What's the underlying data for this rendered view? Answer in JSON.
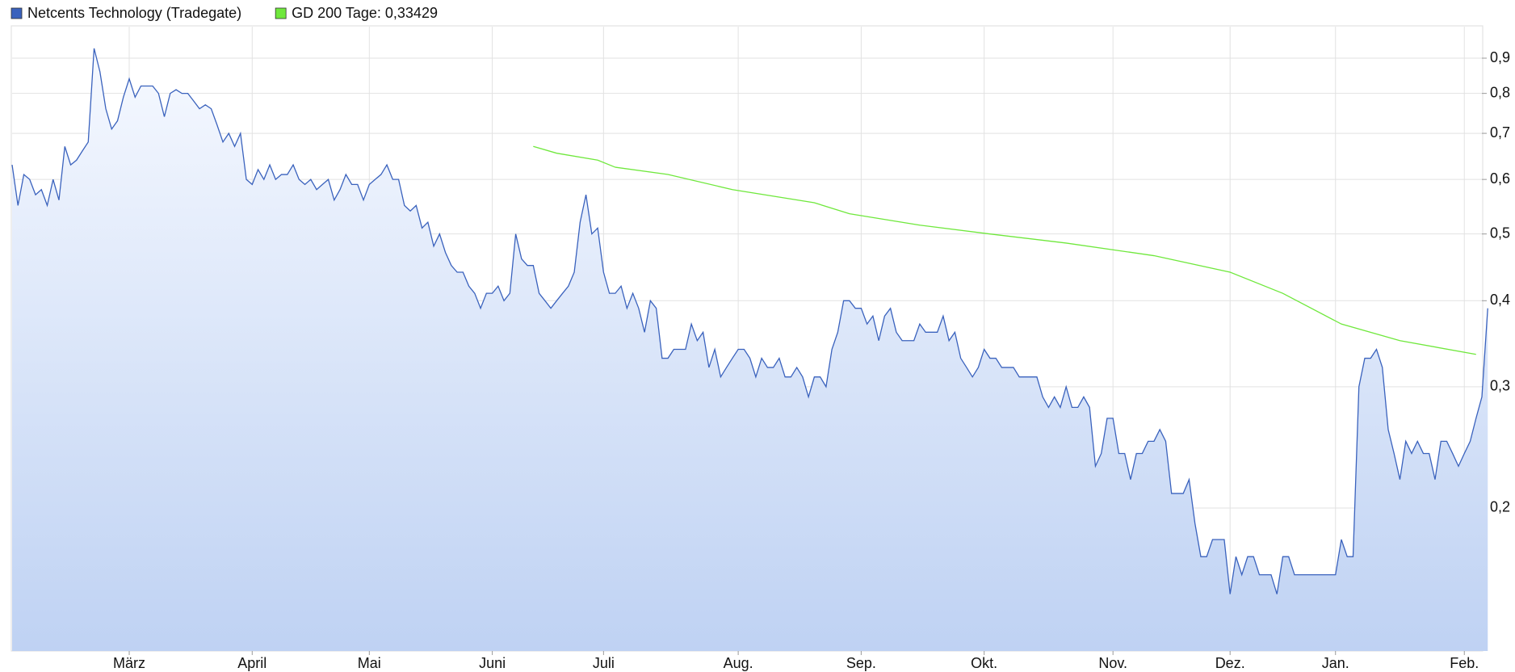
{
  "chart_data": {
    "type": "area",
    "yscale": "log",
    "grid": true,
    "xlim": [
      0,
      251
    ],
    "ylim": [
      0.124,
      1.0
    ],
    "yticks": [
      {
        "value": 0.9,
        "label": "0,9"
      },
      {
        "value": 0.8,
        "label": "0,8"
      },
      {
        "value": 0.7,
        "label": "0,7"
      },
      {
        "value": 0.6,
        "label": "0,6"
      },
      {
        "value": 0.5,
        "label": "0,5"
      },
      {
        "value": 0.4,
        "label": "0,4"
      },
      {
        "value": 0.3,
        "label": "0,3"
      },
      {
        "value": 0.2,
        "label": "0,2"
      }
    ],
    "xticks": [
      {
        "value": 20,
        "label": "März"
      },
      {
        "value": 41,
        "label": "April"
      },
      {
        "value": 61,
        "label": "Mai"
      },
      {
        "value": 82,
        "label": "Juni"
      },
      {
        "value": 101,
        "label": "Juli"
      },
      {
        "value": 124,
        "label": "Aug."
      },
      {
        "value": 145,
        "label": "Sep."
      },
      {
        "value": 166,
        "label": "Okt."
      },
      {
        "value": 188,
        "label": "Nov."
      },
      {
        "value": 208,
        "label": "Dez."
      },
      {
        "value": 226,
        "label": "Jan."
      },
      {
        "value": 248,
        "label": "Feb."
      }
    ],
    "series": [
      {
        "name": "Netcents Technology (Tradegate)",
        "color": "#3a62bd",
        "values": [
          0.63,
          0.55,
          0.61,
          0.6,
          0.57,
          0.58,
          0.55,
          0.6,
          0.56,
          0.67,
          0.63,
          0.64,
          0.66,
          0.68,
          0.93,
          0.86,
          0.76,
          0.71,
          0.73,
          0.79,
          0.84,
          0.79,
          0.82,
          0.82,
          0.82,
          0.8,
          0.74,
          0.8,
          0.81,
          0.8,
          0.8,
          0.78,
          0.76,
          0.77,
          0.76,
          0.72,
          0.68,
          0.7,
          0.67,
          0.7,
          0.6,
          0.59,
          0.62,
          0.6,
          0.63,
          0.6,
          0.61,
          0.61,
          0.63,
          0.6,
          0.59,
          0.6,
          0.58,
          0.59,
          0.6,
          0.56,
          0.58,
          0.61,
          0.59,
          0.59,
          0.56,
          0.59,
          0.6,
          0.61,
          0.63,
          0.6,
          0.6,
          0.55,
          0.54,
          0.55,
          0.51,
          0.52,
          0.48,
          0.5,
          0.47,
          0.45,
          0.44,
          0.44,
          0.42,
          0.41,
          0.39,
          0.41,
          0.41,
          0.42,
          0.4,
          0.41,
          0.5,
          0.46,
          0.45,
          0.45,
          0.41,
          0.4,
          0.39,
          0.4,
          0.41,
          0.42,
          0.44,
          0.52,
          0.57,
          0.5,
          0.51,
          0.44,
          0.41,
          0.41,
          0.42,
          0.39,
          0.41,
          0.39,
          0.36,
          0.4,
          0.39,
          0.33,
          0.33,
          0.34,
          0.34,
          0.34,
          0.37,
          0.35,
          0.36,
          0.32,
          0.34,
          0.31,
          0.32,
          0.33,
          0.34,
          0.34,
          0.33,
          0.31,
          0.33,
          0.32,
          0.32,
          0.33,
          0.31,
          0.31,
          0.32,
          0.31,
          0.29,
          0.31,
          0.31,
          0.3,
          0.34,
          0.36,
          0.4,
          0.4,
          0.39,
          0.39,
          0.37,
          0.38,
          0.35,
          0.38,
          0.39,
          0.36,
          0.35,
          0.35,
          0.35,
          0.37,
          0.36,
          0.36,
          0.36,
          0.38,
          0.35,
          0.36,
          0.33,
          0.32,
          0.31,
          0.32,
          0.34,
          0.33,
          0.33,
          0.32,
          0.32,
          0.32,
          0.31,
          0.31,
          0.31,
          0.31,
          0.29,
          0.28,
          0.29,
          0.28,
          0.3,
          0.28,
          0.28,
          0.29,
          0.28,
          0.23,
          0.24,
          0.27,
          0.27,
          0.24,
          0.24,
          0.22,
          0.24,
          0.24,
          0.25,
          0.25,
          0.26,
          0.25,
          0.21,
          0.21,
          0.21,
          0.22,
          0.19,
          0.17,
          0.17,
          0.18,
          0.18,
          0.18,
          0.15,
          0.17,
          0.16,
          0.17,
          0.17,
          0.16,
          0.16,
          0.16,
          0.15,
          0.17,
          0.17,
          0.16,
          0.16,
          0.16,
          0.16,
          0.16,
          0.16,
          0.16,
          0.16,
          0.18,
          0.17,
          0.17,
          0.3,
          0.33,
          0.33,
          0.34,
          0.32,
          0.26,
          0.24,
          0.22,
          0.25,
          0.24,
          0.25,
          0.24,
          0.24,
          0.22,
          0.25,
          0.25,
          0.24,
          0.23,
          0.24,
          0.25,
          0.27,
          0.29,
          0.39
        ]
      },
      {
        "name": "GD 200 Tage: 0,33429",
        "color": "#6fe83c",
        "x": [
          89,
          93,
          100,
          103,
          112,
          123,
          137,
          143,
          155,
          167,
          180,
          195,
          208,
          217,
          227,
          237,
          250
        ],
        "values": [
          0.67,
          0.655,
          0.64,
          0.625,
          0.61,
          0.58,
          0.555,
          0.535,
          0.515,
          0.5,
          0.485,
          0.465,
          0.44,
          0.41,
          0.37,
          0.35,
          0.33429
        ]
      }
    ]
  }
}
